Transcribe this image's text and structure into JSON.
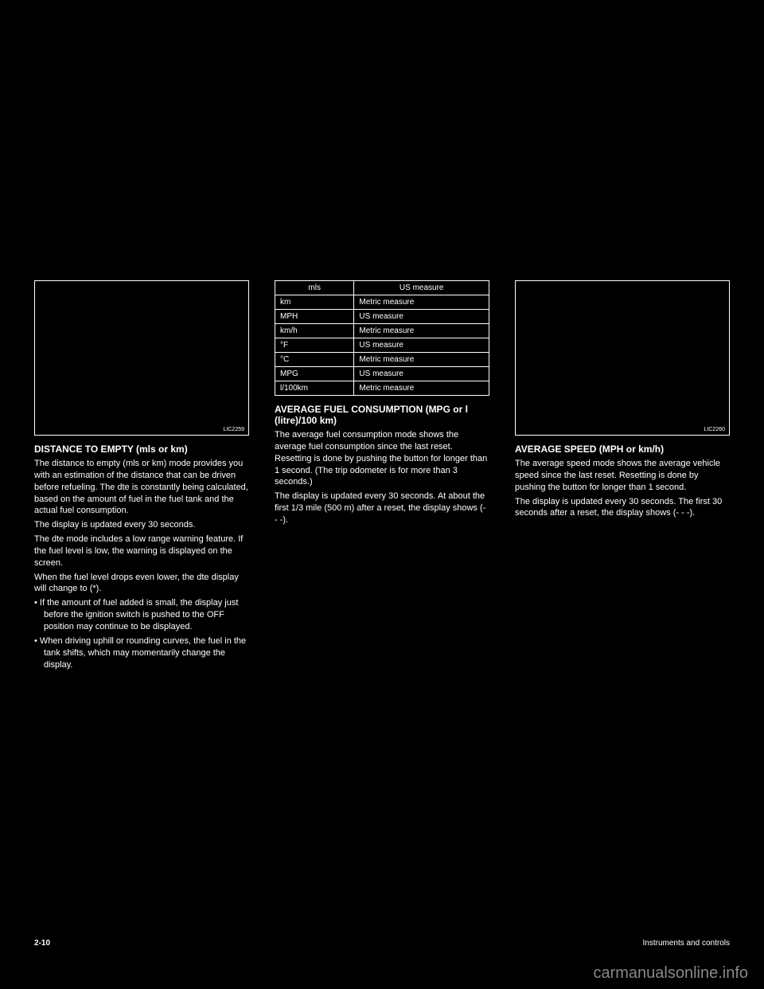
{
  "col1": {
    "heading": "DISTANCE TO EMPTY (mls or km)",
    "fig_label": "LIC2259",
    "text": [
      "The distance to empty (mls or km) mode provides you with an estimation of the distance that can be driven before refueling. The dte is constantly being calculated, based on the amount of fuel in the fuel tank and the actual fuel consumption.",
      "The display is updated every 30 seconds.",
      "The dte mode includes a low range warning feature. If the fuel level is low, the warning is displayed on the screen.",
      "When the fuel level drops even lower, the dte display will change to (*).",
      "• If the amount of fuel added is small, the display just before the ignition switch is pushed to the OFF position may continue to be displayed.",
      "• When driving uphill or rounding curves, the fuel in the tank shifts, which may momentarily change the display."
    ]
  },
  "col2": {
    "heading": "AVERAGE FUEL CONSUMPTION (MPG or l (litre)/100 km)",
    "table": {
      "columns": [
        "mls",
        "US measure"
      ],
      "rows": [
        [
          "km",
          "Metric measure"
        ],
        [
          "MPH",
          "US measure"
        ],
        [
          "km/h",
          "Metric measure"
        ],
        [
          "°F",
          "US measure"
        ],
        [
          "°C",
          "Metric measure"
        ],
        [
          "MPG",
          "US measure"
        ],
        [
          "l/100km",
          "Metric measure"
        ]
      ]
    },
    "text": [
      "The average fuel consumption mode shows the average fuel consumption since the last reset. Resetting is done by pushing the button for longer than 1 second. (The trip odometer is for more than 3 seconds.)",
      "The display is updated every 30 seconds. At about the first 1/3 mile (500 m) after a reset, the display shows (- - -)."
    ]
  },
  "col3": {
    "heading": "AVERAGE SPEED (MPH or km/h)",
    "fig_label": "LIC2260",
    "text": [
      "The average speed mode shows the average vehicle speed since the last reset. Resetting is done by pushing the button for longer than 1 second.",
      "The display is updated every 30 seconds. The first 30 seconds after a reset, the display shows (- - -)."
    ]
  },
  "footer": {
    "page": "2-10",
    "section": "Instruments and controls"
  },
  "watermark": "carmanualsonline.info",
  "colors": {
    "background": "#000000",
    "text": "#ffffff",
    "watermark": "#888888"
  }
}
